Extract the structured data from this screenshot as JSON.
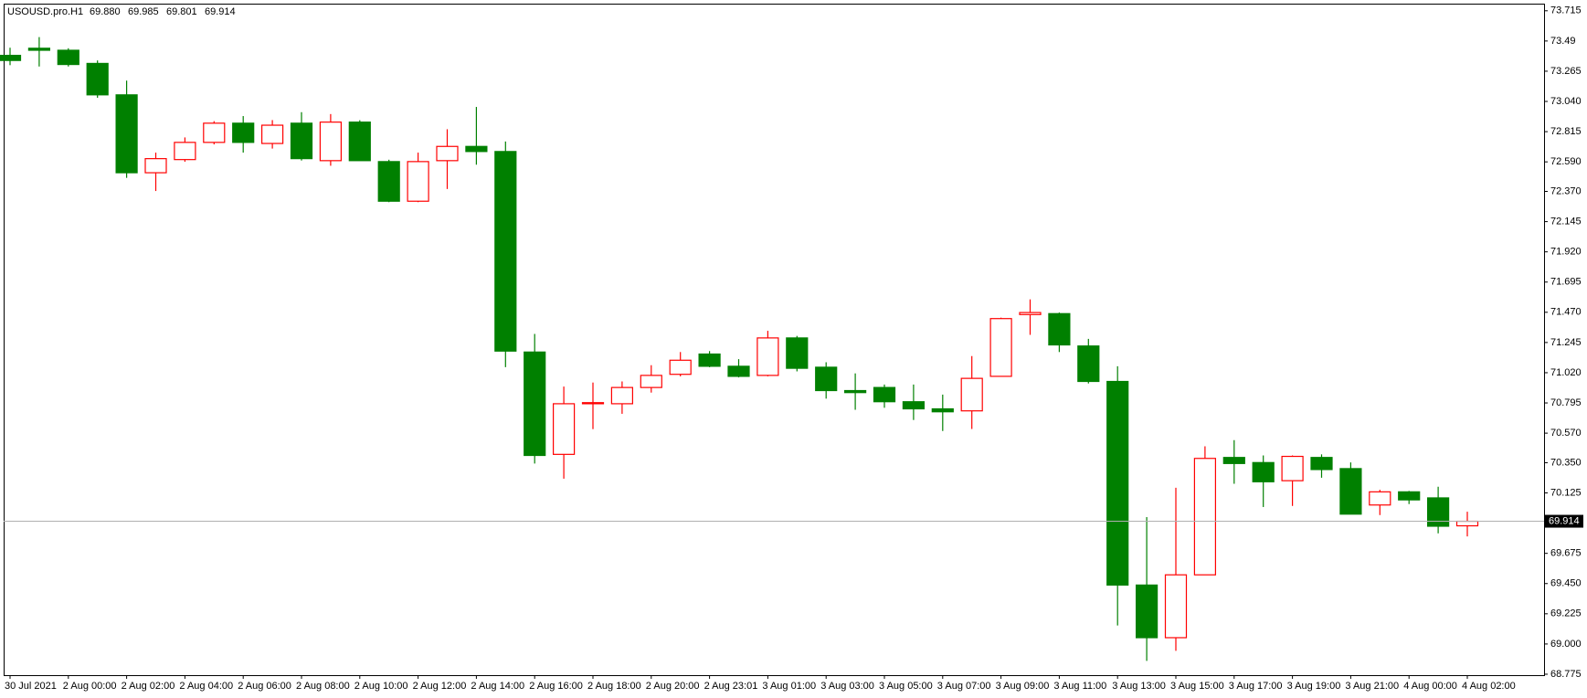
{
  "chart_data": {
    "type": "candlestick",
    "header": "USOUSD.pro.H1",
    "header_ohlc": [
      "69.880",
      "69.985",
      "69.801",
      "69.914"
    ],
    "categories": [
      "30 Jul 2021",
      null,
      "2 Aug 00:00",
      null,
      "2 Aug 02:00",
      null,
      "2 Aug 04:00",
      null,
      "2 Aug 06:00",
      null,
      "2 Aug 08:00",
      null,
      "2 Aug 10:00",
      null,
      "2 Aug 12:00",
      null,
      "2 Aug 14:00",
      null,
      "2 Aug 16:00",
      null,
      "2 Aug 18:00",
      null,
      "2 Aug 20:00",
      null,
      "2 Aug 23:01",
      null,
      "3 Aug 01:00",
      null,
      "3 Aug 03:00",
      null,
      "3 Aug 05:00",
      null,
      "3 Aug 07:00",
      null,
      "3 Aug 09:00",
      null,
      "3 Aug 11:00",
      null,
      "3 Aug 13:00",
      null,
      "3 Aug 15:00",
      null,
      "3 Aug 17:00",
      null,
      "3 Aug 19:00",
      null,
      "3 Aug 21:00",
      null,
      "4 Aug 00:00",
      null,
      "4 Aug 02:00"
    ],
    "open": [
      73.383,
      73.436,
      73.421,
      73.323,
      73.089,
      72.509,
      72.607,
      72.735,
      72.878,
      72.727,
      72.878,
      72.599,
      72.886,
      72.592,
      72.297,
      72.599,
      72.705,
      72.667,
      71.174,
      70.412,
      70.789,
      70.789,
      70.91,
      71.008,
      71.159,
      71.068,
      71.0,
      71.279,
      71.061,
      70.887,
      70.91,
      70.804,
      70.751,
      70.736,
      70.993,
      71.453,
      71.46,
      71.219,
      70.955,
      69.439,
      69.047,
      69.515,
      70.389,
      70.351,
      70.216,
      70.389,
      70.306,
      70.035,
      70.133,
      70.088,
      69.88
    ],
    "high": [
      73.44,
      73.519,
      73.436,
      73.345,
      73.195,
      72.659,
      72.772,
      72.893,
      72.931,
      72.901,
      72.96,
      72.946,
      72.9,
      72.606,
      72.659,
      72.833,
      72.999,
      72.742,
      71.309,
      70.917,
      70.947,
      70.955,
      71.076,
      71.174,
      71.181,
      71.121,
      71.332,
      71.294,
      71.098,
      71.015,
      70.932,
      70.932,
      70.857,
      71.144,
      71.43,
      71.566,
      71.468,
      71.272,
      71.068,
      69.945,
      70.163,
      70.472,
      70.518,
      70.404,
      70.404,
      70.412,
      70.352,
      70.148,
      70.14,
      70.171,
      69.985
    ],
    "low": [
      73.31,
      73.3,
      73.3,
      73.067,
      72.471,
      72.373,
      72.591,
      72.72,
      72.659,
      72.689,
      72.6,
      72.561,
      72.599,
      72.29,
      72.29,
      72.388,
      72.569,
      71.061,
      70.344,
      70.231,
      70.6,
      70.714,
      70.872,
      70.993,
      71.061,
      70.985,
      70.993,
      71.03,
      70.827,
      70.744,
      70.759,
      70.668,
      70.586,
      70.601,
      70.99,
      71.302,
      71.174,
      70.94,
      69.138,
      68.874,
      68.949,
      69.515,
      70.193,
      70.02,
      70.028,
      70.238,
      69.967,
      69.96,
      70.042,
      69.824,
      69.801
    ],
    "close": [
      73.345,
      73.421,
      73.315,
      73.089,
      72.509,
      72.614,
      72.735,
      72.878,
      72.735,
      72.863,
      72.614,
      72.886,
      72.599,
      72.297,
      72.592,
      72.705,
      72.667,
      71.181,
      70.404,
      70.789,
      70.797,
      70.91,
      71.0,
      71.113,
      71.068,
      70.993,
      71.279,
      71.053,
      70.887,
      70.872,
      70.804,
      70.751,
      70.729,
      70.978,
      71.423,
      71.468,
      71.227,
      70.955,
      69.439,
      69.047,
      69.515,
      70.382,
      70.344,
      70.208,
      70.397,
      70.299,
      69.967,
      70.133,
      70.073,
      69.877,
      69.914
    ],
    "up_color": "#ff0000",
    "down_color": "#008000",
    "last_price": {
      "value": 69.914,
      "label": "69.914"
    },
    "ylim": [
      68.768,
      73.768
    ],
    "yticks": [
      73.715,
      73.49,
      73.265,
      {
        "value": 73.04,
        "label": "73.040"
      },
      72.815,
      {
        "value": 72.59,
        "label": "72.590"
      },
      {
        "value": 72.37,
        "label": "72.370"
      },
      72.145,
      {
        "value": 71.92,
        "label": "71.920"
      },
      71.695,
      {
        "value": 71.47,
        "label": "71.470"
      },
      71.245,
      {
        "value": 71.02,
        "label": "71.020"
      },
      70.795,
      {
        "value": 70.57,
        "label": "70.570"
      },
      {
        "value": 70.35,
        "label": "70.350"
      },
      70.125,
      69.675,
      {
        "value": 69.45,
        "label": "69.450"
      },
      69.225,
      {
        "value": 69.0,
        "label": "69.000"
      },
      68.775
    ],
    "grid": false
  }
}
